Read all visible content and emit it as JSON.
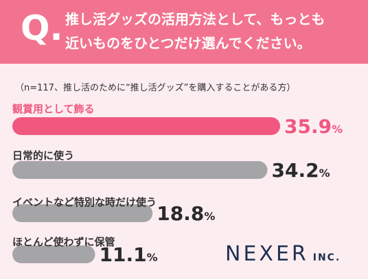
{
  "header": {
    "mark": "Q.",
    "line1": "推し活グッズの活用方法として、もっとも",
    "line2": "近いものをひとつだけ選んでください。"
  },
  "note": "（n=117、推し活のために“推し活グッズ”を購入することがある方）",
  "chart_data": {
    "type": "bar",
    "orientation": "horizontal",
    "categories": [
      "観賞用として飾る",
      "日常的に使う",
      "イベントなど特別な時だけ使う",
      "ほとんど使わずに保管"
    ],
    "values": [
      35.9,
      34.2,
      18.8,
      11.1
    ],
    "value_labels": [
      "35.9",
      "34.2",
      "18.8",
      "11.1"
    ],
    "unit": "%",
    "colors": {
      "highlight": "#f0587f",
      "default": "#a5a5a8"
    }
  },
  "logo": {
    "main": "NEXER",
    "sub": "INC."
  }
}
